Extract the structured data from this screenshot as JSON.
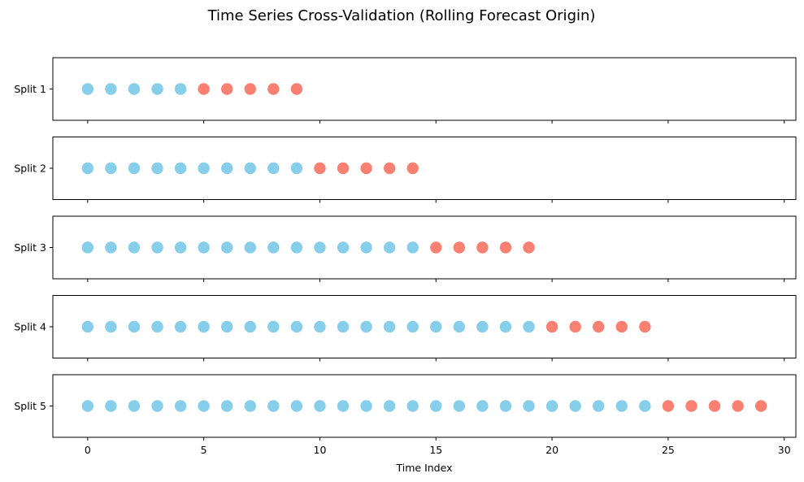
{
  "chart_data": {
    "type": "scatter",
    "title": "Time Series Cross-Validation (Rolling Forecast Origin)",
    "xlabel": "Time Index",
    "xlim": [
      -1.5,
      30.5
    ],
    "xticks": [
      0,
      5,
      10,
      15,
      20,
      25,
      30
    ],
    "grid": false,
    "colors": {
      "train": "#87CEEB",
      "test": "#FA8072"
    },
    "splits": [
      {
        "label": "Split 1",
        "train": [
          0,
          1,
          2,
          3,
          4
        ],
        "test": [
          5,
          6,
          7,
          8,
          9
        ]
      },
      {
        "label": "Split 2",
        "train": [
          0,
          1,
          2,
          3,
          4,
          5,
          6,
          7,
          8,
          9
        ],
        "test": [
          10,
          11,
          12,
          13,
          14
        ]
      },
      {
        "label": "Split 3",
        "train": [
          0,
          1,
          2,
          3,
          4,
          5,
          6,
          7,
          8,
          9,
          10,
          11,
          12,
          13,
          14
        ],
        "test": [
          15,
          16,
          17,
          18,
          19
        ]
      },
      {
        "label": "Split 4",
        "train": [
          0,
          1,
          2,
          3,
          4,
          5,
          6,
          7,
          8,
          9,
          10,
          11,
          12,
          13,
          14,
          15,
          16,
          17,
          18,
          19
        ],
        "test": [
          20,
          21,
          22,
          23,
          24
        ]
      },
      {
        "label": "Split 5",
        "train": [
          0,
          1,
          2,
          3,
          4,
          5,
          6,
          7,
          8,
          9,
          10,
          11,
          12,
          13,
          14,
          15,
          16,
          17,
          18,
          19,
          20,
          21,
          22,
          23,
          24
        ],
        "test": [
          25,
          26,
          27,
          28,
          29
        ]
      }
    ]
  }
}
